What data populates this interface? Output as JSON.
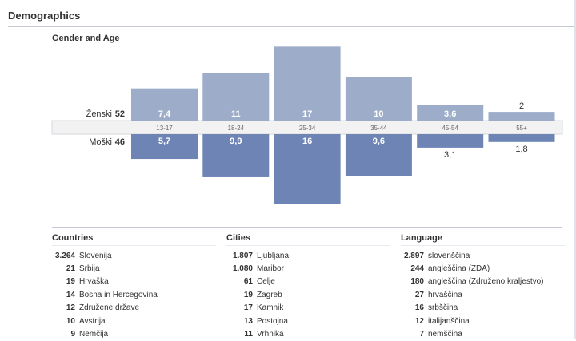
{
  "page": {
    "title": "Demographics"
  },
  "gender_age": {
    "title": "Gender and Age",
    "female": {
      "label": "Ženski",
      "total": "52"
    },
    "male": {
      "label": "Moški",
      "total": "46"
    },
    "colors": {
      "female": "#9cacc9",
      "male": "#6d84b4",
      "band": "#f2f2f2"
    }
  },
  "chart_data": {
    "type": "bar",
    "title": "Gender and Age",
    "categories": [
      "13-17",
      "18-24",
      "25-34",
      "35-44",
      "45-54",
      "55+"
    ],
    "series": [
      {
        "name": "Ženski",
        "values": [
          7.4,
          11,
          17,
          10,
          3.6,
          2
        ],
        "labels": [
          "7,4",
          "11",
          "17",
          "10",
          "3,6",
          "2"
        ]
      },
      {
        "name": "Moški",
        "values": [
          5.7,
          9.9,
          16,
          9.6,
          3.1,
          1.8
        ],
        "labels": [
          "5,7",
          "9,9",
          "16",
          "9,6",
          "3,1",
          "1,8"
        ]
      }
    ]
  },
  "countries": {
    "title": "Countries",
    "rows": [
      {
        "count": "3.264",
        "name": "Slovenija"
      },
      {
        "count": "21",
        "name": "Srbija"
      },
      {
        "count": "19",
        "name": "Hrvaška"
      },
      {
        "count": "14",
        "name": "Bosna in Hercegovina"
      },
      {
        "count": "12",
        "name": "Združene države"
      },
      {
        "count": "10",
        "name": "Avstrija"
      },
      {
        "count": "9",
        "name": "Nemčija"
      }
    ]
  },
  "cities": {
    "title": "Cities",
    "rows": [
      {
        "count": "1.807",
        "name": "Ljubljana"
      },
      {
        "count": "1.080",
        "name": "Maribor"
      },
      {
        "count": "61",
        "name": "Celje"
      },
      {
        "count": "19",
        "name": "Zagreb"
      },
      {
        "count": "17",
        "name": "Kamnik"
      },
      {
        "count": "13",
        "name": "Postojna"
      },
      {
        "count": "11",
        "name": "Vrhnika"
      }
    ]
  },
  "language": {
    "title": "Language",
    "rows": [
      {
        "count": "2.897",
        "name": "slovenščina"
      },
      {
        "count": "244",
        "name": "angleščina (ZDA)"
      },
      {
        "count": "180",
        "name": "angleščina (Združeno kraljestvo)"
      },
      {
        "count": "27",
        "name": "hrvaščina"
      },
      {
        "count": "16",
        "name": "srbščina"
      },
      {
        "count": "12",
        "name": "italijanščina"
      },
      {
        "count": "7",
        "name": "nemščina"
      }
    ]
  }
}
